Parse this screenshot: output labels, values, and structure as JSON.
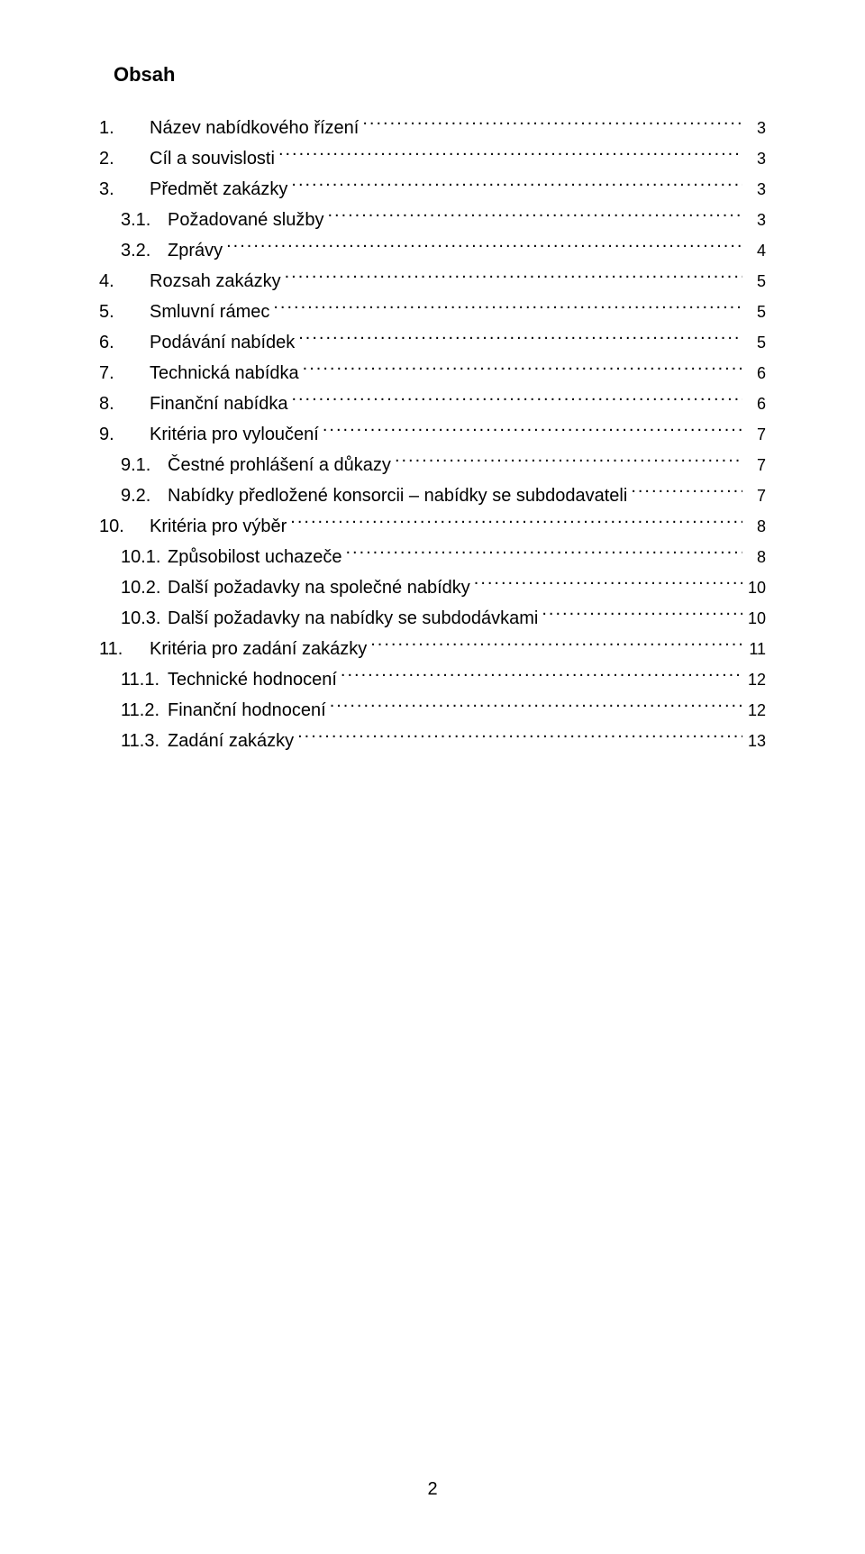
{
  "title": "Obsah",
  "page_number": "2",
  "toc": [
    {
      "level": "main",
      "num": "1.",
      "text": "Název nabídkového řízení",
      "page": "3"
    },
    {
      "level": "main",
      "num": "2.",
      "text": "Cíl a souvislosti",
      "page": "3"
    },
    {
      "level": "main",
      "num": "3.",
      "text": "Předmět zakázky",
      "page": "3"
    },
    {
      "level": "sub",
      "num": "3.1.",
      "text": "Požadované služby",
      "page": "3"
    },
    {
      "level": "sub",
      "num": "3.2.",
      "text": "Zprávy",
      "page": "4"
    },
    {
      "level": "main",
      "num": "4.",
      "text": "Rozsah zakázky",
      "page": "5"
    },
    {
      "level": "main",
      "num": "5.",
      "text": "Smluvní rámec",
      "page": "5"
    },
    {
      "level": "main",
      "num": "6.",
      "text": "Podávání nabídek",
      "page": "5"
    },
    {
      "level": "main",
      "num": "7.",
      "text": "Technická nabídka",
      "page": "6"
    },
    {
      "level": "main",
      "num": "8.",
      "text": "Finanční nabídka",
      "page": "6"
    },
    {
      "level": "main",
      "num": "9.",
      "text": "Kritéria pro vyloučení",
      "page": "7"
    },
    {
      "level": "sub",
      "num": "9.1.",
      "text": "Čestné prohlášení a důkazy",
      "page": "7"
    },
    {
      "level": "sub",
      "num": "9.2.",
      "text": "Nabídky předložené konsorcii – nabídky se subdodavateli",
      "page": "7"
    },
    {
      "level": "main",
      "num": "10.",
      "text": "Kritéria pro výběr",
      "page": "8"
    },
    {
      "level": "sub",
      "num": "10.1.",
      "text": "Způsobilost uchazeče",
      "page": "8"
    },
    {
      "level": "sub",
      "num": "10.2.",
      "text": "Další požadavky na společné nabídky",
      "page": "10"
    },
    {
      "level": "sub",
      "num": "10.3.",
      "text": "Další požadavky na nabídky se subdodávkami",
      "page": "10"
    },
    {
      "level": "main",
      "num": "11.",
      "text": "Kritéria pro zadání zakázky",
      "page": "11"
    },
    {
      "level": "sub",
      "num": "11.1.",
      "text": "Technické hodnocení",
      "page": "12"
    },
    {
      "level": "sub",
      "num": "11.2.",
      "text": "Finanční hodnocení",
      "page": "12"
    },
    {
      "level": "sub",
      "num": "11.3.",
      "text": "Zadání zakázky",
      "page": "13"
    }
  ]
}
